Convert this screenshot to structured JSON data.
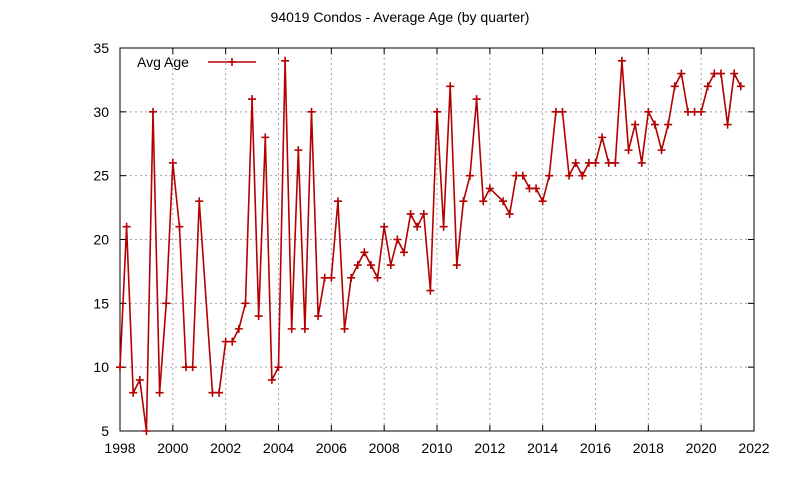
{
  "chart_data": {
    "type": "line",
    "title": "94019 Condos - Average Age (by quarter)",
    "xlabel": "",
    "ylabel": "",
    "xlim": [
      1998,
      2022
    ],
    "ylim": [
      5,
      35
    ],
    "x_ticks": [
      1998,
      2000,
      2002,
      2004,
      2006,
      2008,
      2010,
      2012,
      2014,
      2016,
      2018,
      2020,
      2022
    ],
    "y_ticks": [
      5,
      10,
      15,
      20,
      25,
      30,
      35
    ],
    "grid": true,
    "legend_position": "top-left",
    "colors": {
      "series": "#b30000",
      "grid": "#a0a0a0",
      "axis": "#000000"
    },
    "series": [
      {
        "name": "Avg Age",
        "points": [
          [
            1998.0,
            10
          ],
          [
            1998.25,
            21
          ],
          [
            1998.5,
            8
          ],
          [
            1998.75,
            9
          ],
          [
            1999.0,
            5
          ],
          [
            1999.25,
            30
          ],
          [
            1999.5,
            8
          ],
          [
            1999.75,
            15
          ],
          [
            2000.0,
            26
          ],
          [
            2000.25,
            21
          ],
          [
            2000.5,
            10
          ],
          [
            2000.75,
            10
          ],
          [
            2001.0,
            23
          ],
          [
            2001.5,
            8
          ],
          [
            2001.75,
            8
          ],
          [
            2002.0,
            12
          ],
          [
            2002.25,
            12
          ],
          [
            2002.5,
            13
          ],
          [
            2002.75,
            15
          ],
          [
            2003.0,
            31
          ],
          [
            2003.25,
            14
          ],
          [
            2003.5,
            28
          ],
          [
            2003.75,
            9
          ],
          [
            2004.0,
            10
          ],
          [
            2004.25,
            34
          ],
          [
            2004.5,
            13
          ],
          [
            2004.75,
            27
          ],
          [
            2005.0,
            13
          ],
          [
            2005.25,
            30
          ],
          [
            2005.5,
            14
          ],
          [
            2005.75,
            17
          ],
          [
            2006.0,
            17
          ],
          [
            2006.25,
            23
          ],
          [
            2006.5,
            13
          ],
          [
            2006.75,
            17
          ],
          [
            2007.0,
            18
          ],
          [
            2007.25,
            19
          ],
          [
            2007.5,
            18
          ],
          [
            2007.75,
            17
          ],
          [
            2008.0,
            21
          ],
          [
            2008.25,
            18
          ],
          [
            2008.5,
            20
          ],
          [
            2008.75,
            19
          ],
          [
            2009.0,
            22
          ],
          [
            2009.25,
            21
          ],
          [
            2009.5,
            22
          ],
          [
            2009.75,
            16
          ],
          [
            2010.0,
            30
          ],
          [
            2010.25,
            21
          ],
          [
            2010.5,
            32
          ],
          [
            2010.75,
            18
          ],
          [
            2011.0,
            23
          ],
          [
            2011.25,
            25
          ],
          [
            2011.5,
            31
          ],
          [
            2011.75,
            23
          ],
          [
            2012.0,
            24
          ],
          [
            2012.5,
            23
          ],
          [
            2012.75,
            22
          ],
          [
            2013.0,
            25
          ],
          [
            2013.25,
            25
          ],
          [
            2013.5,
            24
          ],
          [
            2013.75,
            24
          ],
          [
            2014.0,
            23
          ],
          [
            2014.25,
            25
          ],
          [
            2014.5,
            30
          ],
          [
            2014.75,
            30
          ],
          [
            2015.0,
            25
          ],
          [
            2015.25,
            26
          ],
          [
            2015.5,
            25
          ],
          [
            2015.75,
            26
          ],
          [
            2016.0,
            26
          ],
          [
            2016.25,
            28
          ],
          [
            2016.5,
            26
          ],
          [
            2016.75,
            26
          ],
          [
            2017.0,
            34
          ],
          [
            2017.25,
            27
          ],
          [
            2017.5,
            29
          ],
          [
            2017.75,
            26
          ],
          [
            2018.0,
            30
          ],
          [
            2018.25,
            29
          ],
          [
            2018.5,
            27
          ],
          [
            2018.75,
            29
          ],
          [
            2019.0,
            32
          ],
          [
            2019.25,
            33
          ],
          [
            2019.5,
            30
          ],
          [
            2019.75,
            30
          ],
          [
            2020.0,
            30
          ],
          [
            2020.25,
            32
          ],
          [
            2020.5,
            33
          ],
          [
            2020.75,
            33
          ],
          [
            2021.0,
            29
          ],
          [
            2021.25,
            33
          ],
          [
            2021.5,
            32
          ]
        ]
      }
    ]
  }
}
